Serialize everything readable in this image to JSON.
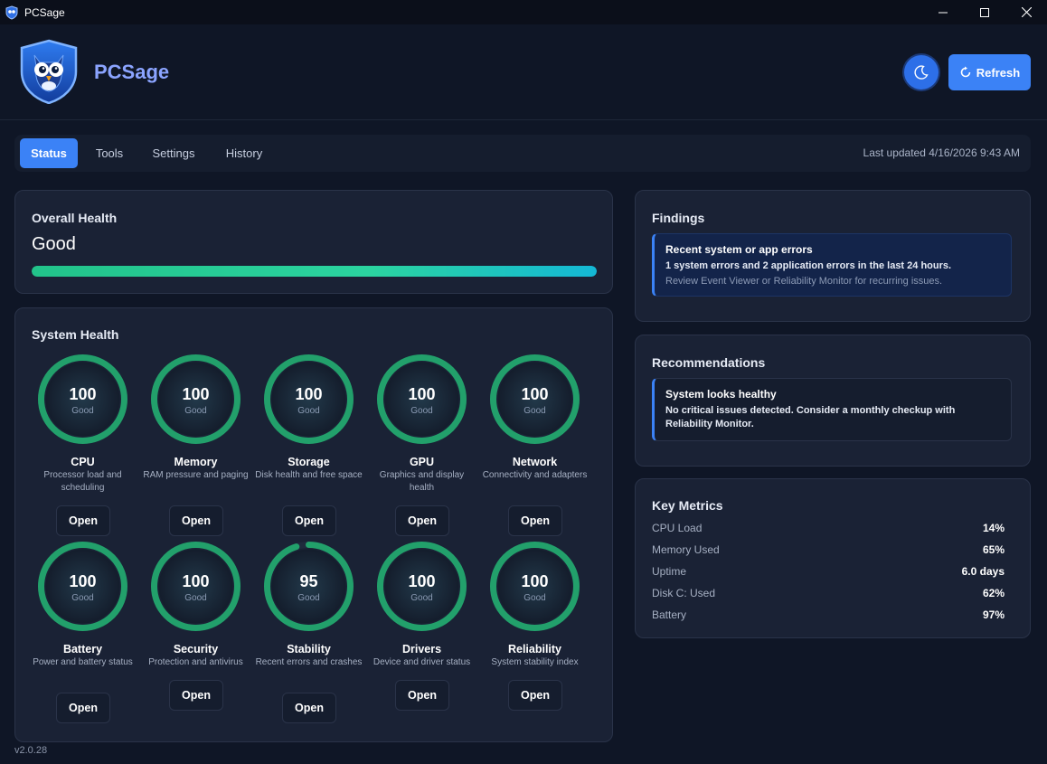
{
  "window": {
    "title": "PCSage"
  },
  "header": {
    "app_name": "PCSage",
    "refresh_label": "Refresh"
  },
  "tabs": [
    {
      "label": "Status",
      "active": true
    },
    {
      "label": "Tools",
      "active": false
    },
    {
      "label": "Settings",
      "active": false
    },
    {
      "label": "History",
      "active": false
    }
  ],
  "last_updated": "Last updated 4/16/2026 9:43 AM",
  "overall_health": {
    "title": "Overall Health",
    "value": "Good",
    "progress": 1.0
  },
  "system_health": {
    "title": "System Health",
    "open_label": "Open",
    "tiles": [
      {
        "name": "CPU",
        "score": 100,
        "status": "Good",
        "desc": "Processor load and scheduling"
      },
      {
        "name": "Memory",
        "score": 100,
        "status": "Good",
        "desc": "RAM pressure and paging"
      },
      {
        "name": "Storage",
        "score": 100,
        "status": "Good",
        "desc": "Disk health and free space"
      },
      {
        "name": "GPU",
        "score": 100,
        "status": "Good",
        "desc": "Graphics and display health"
      },
      {
        "name": "Network",
        "score": 100,
        "status": "Good",
        "desc": "Connectivity and adapters"
      },
      {
        "name": "Battery",
        "score": 100,
        "status": "Good",
        "desc": "Power and battery status"
      },
      {
        "name": "Security",
        "score": 100,
        "status": "Good",
        "desc": "Protection and antivirus"
      },
      {
        "name": "Stability",
        "score": 95,
        "status": "Good",
        "desc": "Recent errors and crashes"
      },
      {
        "name": "Drivers",
        "score": 100,
        "status": "Good",
        "desc": "Device and driver status"
      },
      {
        "name": "Reliability",
        "score": 100,
        "status": "Good",
        "desc": "System stability index"
      }
    ]
  },
  "findings": {
    "title": "Findings",
    "items": [
      {
        "title": "Recent system or app errors",
        "body": "1 system errors and 2 application errors in the last 24 hours.",
        "hint": "Review Event Viewer or Reliability Monitor for recurring issues."
      }
    ]
  },
  "recommendations": {
    "title": "Recommendations",
    "items": [
      {
        "title": "System looks healthy",
        "body": "No critical issues detected. Consider a monthly checkup with Reliability Monitor."
      }
    ]
  },
  "key_metrics": {
    "title": "Key Metrics",
    "rows": [
      {
        "label": "CPU Load",
        "value": "14%"
      },
      {
        "label": "Memory Used",
        "value": "65%"
      },
      {
        "label": "Uptime",
        "value": "6.0 days"
      },
      {
        "label": "Disk C: Used",
        "value": "62%"
      },
      {
        "label": "Battery",
        "value": "97%"
      }
    ]
  },
  "version": "v2.0.28",
  "colors": {
    "accent": "#3b82f6",
    "gauge": "#22a06b",
    "background": "#0f1626"
  },
  "icons": {
    "app": "owl-shield-logo",
    "theme": "moon-icon",
    "refresh": "refresh-icon"
  }
}
